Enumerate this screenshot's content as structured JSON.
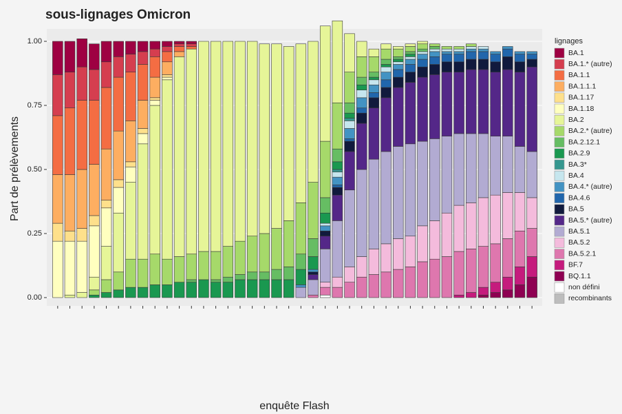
{
  "chart_data": {
    "type": "stacked_bar",
    "title": "sous-lignages Omicron",
    "x_label": "enquête Flash",
    "y_label": "Part de prélèvements",
    "legend_title": "lignages",
    "legend_position": "right",
    "ylim": [
      0,
      1
    ],
    "yticks": [
      {
        "value": 0,
        "label": "0.00"
      },
      {
        "value": 0.25,
        "label": "0.25"
      },
      {
        "value": 0.5,
        "label": "0.50"
      },
      {
        "value": 0.75,
        "label": "0.75"
      },
      {
        "value": 1,
        "label": "1.00"
      }
    ],
    "grid": true,
    "categories": [
      null,
      null,
      null,
      null,
      null,
      null,
      null,
      null,
      null,
      null,
      null,
      null,
      null,
      null,
      null,
      null,
      null,
      null,
      null,
      null,
      null,
      null,
      null,
      null,
      null,
      null,
      null,
      null,
      null,
      null,
      null,
      null,
      null,
      null,
      null,
      null,
      null,
      null,
      null,
      null
    ],
    "series": [
      {
        "name": "BA.1",
        "color": "#9e0142",
        "values": [
          0.13,
          0.12,
          0.11,
          0.1,
          0.08,
          0.06,
          0.05,
          0.04,
          0.03,
          0.02,
          0.01,
          0.01,
          0,
          0,
          0,
          0,
          0,
          0,
          0,
          0,
          0,
          0,
          0,
          0,
          0,
          0,
          0,
          0,
          0,
          0,
          0,
          0,
          0,
          0,
          0,
          0,
          0,
          0,
          0,
          0
        ]
      },
      {
        "name": "BA.1.* (autre)",
        "color": "#d53e4f",
        "values": [
          0.16,
          0.14,
          0.13,
          0.12,
          0.1,
          0.08,
          0.07,
          0.05,
          0.03,
          0.02,
          0.01,
          0.01,
          0,
          0,
          0,
          0,
          0,
          0,
          0,
          0,
          0,
          0,
          0,
          0,
          0,
          0,
          0,
          0,
          0,
          0,
          0,
          0,
          0,
          0,
          0,
          0,
          0,
          0,
          0,
          0
        ]
      },
      {
        "name": "BA.1.1",
        "color": "#f46d43",
        "values": [
          0.23,
          0.26,
          0.27,
          0.25,
          0.24,
          0.21,
          0.19,
          0.14,
          0.08,
          0.04,
          0.02,
          0.01,
          0,
          0,
          0,
          0,
          0,
          0,
          0,
          0,
          0,
          0,
          0,
          0,
          0,
          0,
          0,
          0,
          0,
          0,
          0,
          0,
          0,
          0,
          0,
          0,
          0,
          0,
          0,
          0
        ]
      },
      {
        "name": "BA.1.1.1",
        "color": "#fdae61",
        "values": [
          0.19,
          0.22,
          0.23,
          0.2,
          0.2,
          0.19,
          0.16,
          0.11,
          0.08,
          0.05,
          0.02,
          0,
          0,
          0,
          0,
          0,
          0,
          0,
          0,
          0,
          0,
          0,
          0,
          0,
          0,
          0,
          0,
          0,
          0,
          0,
          0,
          0,
          0,
          0,
          0,
          0,
          0,
          0,
          0,
          0
        ]
      },
      {
        "name": "BA.1.17",
        "color": "#fee08b",
        "values": [
          0.07,
          0.04,
          0.05,
          0.04,
          0.03,
          0.03,
          0.02,
          0.02,
          0.01,
          0.01,
          0,
          0,
          0,
          0,
          0,
          0,
          0,
          0,
          0,
          0,
          0,
          0,
          0,
          0,
          0,
          0,
          0,
          0,
          0,
          0,
          0,
          0,
          0,
          0,
          0,
          0,
          0,
          0,
          0,
          0
        ]
      },
      {
        "name": "BA.1.18",
        "color": "#ffffbf",
        "values": [
          0.22,
          0.21,
          0.2,
          0.2,
          0.15,
          0.1,
          0.06,
          0.04,
          0.02,
          0.01,
          0,
          0,
          0,
          0,
          0,
          0,
          0,
          0,
          0,
          0,
          0,
          0,
          0,
          0,
          0,
          0,
          0,
          0,
          0,
          0,
          0,
          0,
          0,
          0,
          0,
          0,
          0,
          0,
          0,
          0
        ]
      },
      {
        "name": "BA.2",
        "color": "#e6f598",
        "values": [
          0,
          0.01,
          0.02,
          0.05,
          0.13,
          0.23,
          0.3,
          0.45,
          0.58,
          0.7,
          0.78,
          0.8,
          0.82,
          0.82,
          0.8,
          0.78,
          0.76,
          0.74,
          0.72,
          0.68,
          0.62,
          0.55,
          0.45,
          0.32,
          0.15,
          0.06,
          0.03,
          0.02,
          0.01,
          0.01,
          0.01,
          0,
          0,
          0,
          0,
          0,
          0,
          0,
          0,
          0
        ]
      },
      {
        "name": "BA.2.* (autre)",
        "color": "#a6d96a",
        "values": [
          0,
          0,
          0,
          0.02,
          0.05,
          0.07,
          0.11,
          0.11,
          0.12,
          0.1,
          0.1,
          0.1,
          0.11,
          0.11,
          0.12,
          0.13,
          0.14,
          0.15,
          0.16,
          0.18,
          0.2,
          0.22,
          0.22,
          0.18,
          0.12,
          0.08,
          0.06,
          0.04,
          0.03,
          0.02,
          0.02,
          0.01,
          0.01,
          0.01,
          0.01,
          0,
          0,
          0,
          0,
          0
        ]
      },
      {
        "name": "BA.2.12.1",
        "color": "#66bd63",
        "values": [
          0,
          0,
          0,
          0,
          0,
          0,
          0,
          0,
          0,
          0,
          0,
          0.01,
          0,
          0.01,
          0.02,
          0.02,
          0.03,
          0.03,
          0.04,
          0.05,
          0.06,
          0.07,
          0.06,
          0.05,
          0.04,
          0.03,
          0.02,
          0.02,
          0.01,
          0.01,
          0.01,
          0.01,
          0,
          0,
          0,
          0,
          0,
          0,
          0,
          0
        ]
      },
      {
        "name": "BA.2.9",
        "color": "#1a9850",
        "values": [
          0,
          0,
          0,
          0.01,
          0.02,
          0.03,
          0.04,
          0.04,
          0.05,
          0.05,
          0.06,
          0.06,
          0.07,
          0.06,
          0.06,
          0.07,
          0.07,
          0.07,
          0.07,
          0.07,
          0.06,
          0.05,
          0.04,
          0.03,
          0.02,
          0.02,
          0.01,
          0.01,
          0.01,
          0.01,
          0,
          0,
          0,
          0,
          0,
          0,
          0,
          0,
          0,
          0
        ]
      },
      {
        "name": "BA.3*",
        "color": "#35978f",
        "values": [
          0,
          0,
          0,
          0,
          0,
          0,
          0,
          0,
          0,
          0,
          0,
          0,
          0,
          0,
          0,
          0,
          0,
          0,
          0,
          0,
          0,
          0,
          0,
          0.01,
          0.01,
          0,
          0,
          0,
          0,
          0,
          0,
          0,
          0,
          0,
          0,
          0,
          0,
          0,
          0,
          0
        ]
      },
      {
        "name": "BA.4",
        "color": "#c6e6ee",
        "values": [
          0,
          0,
          0,
          0,
          0,
          0,
          0,
          0,
          0,
          0,
          0,
          0,
          0,
          0,
          0,
          0,
          0,
          0,
          0,
          0,
          0,
          0,
          0.01,
          0.02,
          0.03,
          0.03,
          0.02,
          0.02,
          0.01,
          0.01,
          0.01,
          0.01,
          0.01,
          0.01,
          0.01,
          0.01,
          0,
          0,
          0,
          0
        ]
      },
      {
        "name": "BA.4.* (autre)",
        "color": "#4393c3",
        "values": [
          0,
          0,
          0,
          0,
          0,
          0,
          0,
          0,
          0,
          0,
          0,
          0,
          0,
          0,
          0,
          0,
          0,
          0,
          0,
          0,
          0.01,
          0.01,
          0.02,
          0.03,
          0.04,
          0.04,
          0.03,
          0.03,
          0.02,
          0.02,
          0.02,
          0.02,
          0.01,
          0.01,
          0.01,
          0.01,
          0.01,
          0.01,
          0.01,
          0.01
        ]
      },
      {
        "name": "BA.4.6",
        "color": "#2166ac",
        "values": [
          0,
          0,
          0,
          0,
          0,
          0,
          0,
          0,
          0,
          0,
          0,
          0,
          0,
          0,
          0,
          0,
          0,
          0,
          0,
          0,
          0,
          0,
          0,
          0.01,
          0.01,
          0.02,
          0.02,
          0.03,
          0.03,
          0.03,
          0.03,
          0.03,
          0.03,
          0.03,
          0.03,
          0.03,
          0.03,
          0.03,
          0.03,
          0.02
        ]
      },
      {
        "name": "BA.5",
        "color": "#111a3d",
        "values": [
          0,
          0,
          0,
          0,
          0,
          0,
          0,
          0,
          0,
          0,
          0,
          0,
          0,
          0,
          0,
          0,
          0,
          0,
          0,
          0,
          0,
          0.01,
          0.02,
          0.03,
          0.04,
          0.04,
          0.04,
          0.04,
          0.04,
          0.04,
          0.04,
          0.04,
          0.04,
          0.04,
          0.04,
          0.04,
          0.04,
          0.05,
          0.04,
          0.03
        ]
      },
      {
        "name": "BA.5.* (autre)",
        "color": "#542788",
        "values": [
          0,
          0,
          0,
          0,
          0,
          0,
          0,
          0,
          0,
          0,
          0,
          0,
          0,
          0,
          0,
          0,
          0,
          0,
          0,
          0,
          0,
          0.02,
          0.05,
          0.1,
          0.15,
          0.18,
          0.2,
          0.21,
          0.23,
          0.24,
          0.25,
          0.25,
          0.25,
          0.24,
          0.25,
          0.25,
          0.25,
          0.26,
          0.29,
          0.33
        ]
      },
      {
        "name": "BA.5.1",
        "color": "#b2abd2",
        "values": [
          0,
          0,
          0,
          0,
          0,
          0,
          0,
          0,
          0,
          0,
          0,
          0,
          0,
          0,
          0,
          0,
          0,
          0,
          0,
          0,
          0.04,
          0.06,
          0.13,
          0.22,
          0.3,
          0.34,
          0.35,
          0.36,
          0.36,
          0.36,
          0.33,
          0.32,
          0.3,
          0.28,
          0.27,
          0.25,
          0.23,
          0.22,
          0.18,
          0.18
        ]
      },
      {
        "name": "BA.5.2",
        "color": "#f4bbdc",
        "values": [
          0,
          0,
          0,
          0,
          0,
          0,
          0,
          0,
          0,
          0,
          0,
          0,
          0,
          0,
          0,
          0,
          0,
          0,
          0,
          0,
          0,
          0,
          0.02,
          0.04,
          0.06,
          0.08,
          0.1,
          0.11,
          0.12,
          0.12,
          0.14,
          0.15,
          0.17,
          0.18,
          0.18,
          0.19,
          0.19,
          0.18,
          0.15,
          0.12
        ]
      },
      {
        "name": "BA.5.2.1",
        "color": "#de77ae",
        "values": [
          0,
          0,
          0,
          0,
          0,
          0,
          0,
          0,
          0,
          0,
          0,
          0,
          0,
          0,
          0,
          0,
          0,
          0,
          0,
          0,
          0,
          0.01,
          0.03,
          0.04,
          0.06,
          0.08,
          0.09,
          0.1,
          0.11,
          0.12,
          0.14,
          0.15,
          0.16,
          0.17,
          0.17,
          0.16,
          0.15,
          0.15,
          0.14,
          0.11
        ]
      },
      {
        "name": "BF.7",
        "color": "#c51b7d",
        "values": [
          0,
          0,
          0,
          0,
          0,
          0,
          0,
          0,
          0,
          0,
          0,
          0,
          0,
          0,
          0,
          0,
          0,
          0,
          0,
          0,
          0,
          0,
          0,
          0,
          0,
          0,
          0,
          0,
          0,
          0,
          0,
          0,
          0,
          0.01,
          0.02,
          0.03,
          0.04,
          0.05,
          0.07,
          0.08
        ]
      },
      {
        "name": "BQ.1.1",
        "color": "#8e0152",
        "values": [
          0,
          0,
          0,
          0,
          0,
          0,
          0,
          0,
          0,
          0,
          0,
          0,
          0,
          0,
          0,
          0,
          0,
          0,
          0,
          0,
          0,
          0,
          0,
          0,
          0,
          0,
          0,
          0,
          0,
          0,
          0,
          0,
          0,
          0,
          0,
          0.01,
          0.02,
          0.03,
          0.05,
          0.08
        ]
      },
      {
        "name": "non défini",
        "color": "#ffffff",
        "values": [
          0,
          0,
          0,
          0,
          0,
          0,
          0,
          0,
          0,
          0,
          0,
          0,
          0,
          0,
          0,
          0,
          0,
          0,
          0,
          0,
          0,
          0,
          0.01,
          0,
          0,
          0,
          0,
          0,
          0,
          0,
          0,
          0,
          0,
          0,
          0,
          0,
          0,
          0,
          0,
          0
        ]
      },
      {
        "name": "recombinants",
        "color": "#bdbdbd",
        "values": [
          0,
          0,
          0,
          0,
          0,
          0,
          0,
          0,
          0,
          0,
          0,
          0,
          0,
          0,
          0,
          0,
          0,
          0,
          0,
          0,
          0,
          0,
          0,
          0,
          0,
          0,
          0,
          0,
          0,
          0,
          0,
          0,
          0,
          0,
          0,
          0,
          0,
          0,
          0,
          0
        ]
      }
    ]
  }
}
